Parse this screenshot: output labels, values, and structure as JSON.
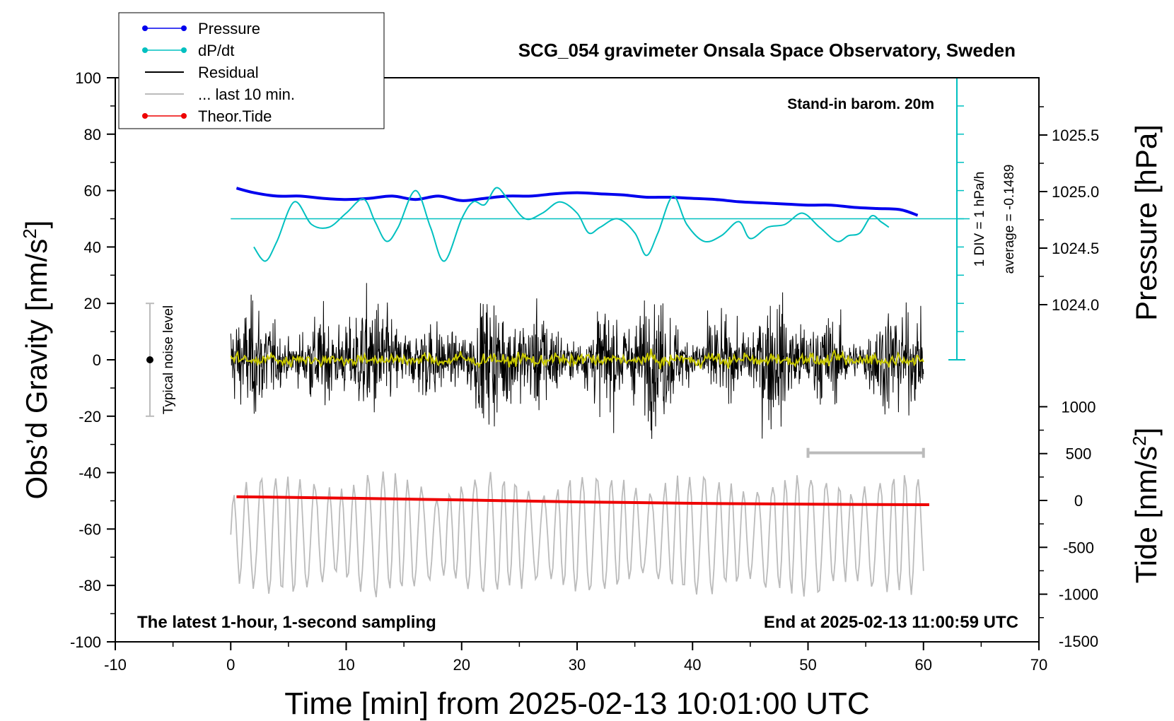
{
  "chart_data": {
    "type": "line",
    "title": "SCG_054 gravimeter Onsala Space Observatory, Sweden",
    "xlabel": "Time [min] from 2025-02-13 10:01:00 UTC",
    "ylabel_left": "Obs’d Gravity [nm/s²]",
    "ylabel_left_main": "Obs’d Gravity [nm/s",
    "ylabel_left_sup": "2",
    "ylabel_left_end": "]",
    "ylabel_right_pressure": "Pressure [hPa]",
    "ylabel_right_tide": "Tide [nm/s²]",
    "ylabel_right_tide_main": "Tide [nm/s",
    "ylabel_right_tide_sup": "2",
    "ylabel_right_tide_end": "]",
    "xlim": [
      -10,
      70
    ],
    "ylim_left": [
      -100,
      100
    ],
    "xticks": [
      "-10",
      "0",
      "10",
      "20",
      "30",
      "40",
      "50",
      "60",
      "70"
    ],
    "yticks_left": [
      "100",
      "80",
      "60",
      "40",
      "20",
      "0",
      "-20",
      "-40",
      "-60",
      "-80",
      "-100"
    ],
    "pressure_ticks": [
      "1025.5",
      "1025.0",
      "1024.5",
      "1024.0"
    ],
    "tide_ticks": [
      "1000",
      "500",
      "0",
      "-500",
      "-1000",
      "-1500"
    ],
    "legend": [
      {
        "label": "Pressure",
        "color": "#0000ee",
        "marker": true
      },
      {
        "label": "dP/dt",
        "color": "#00c0c0",
        "marker": true
      },
      {
        "label": "Residual",
        "color": "#000000",
        "marker": false
      },
      {
        "label": "... last 10 min.",
        "color": "#bbbbbb",
        "marker": false
      },
      {
        "label": "Theor.Tide",
        "color": "#ee0000",
        "marker": true
      }
    ],
    "annotations": {
      "standin": "Stand-in barom. 20m",
      "div": "1 DIV = 1 hPa/h",
      "average": "average = -0.1489",
      "noise": "Typical noise level",
      "bottom_left": "The latest 1-hour, 1-second sampling",
      "bottom_right": "End at 2025-02-13 11:00:59 UTC"
    },
    "series": [
      {
        "name": "Pressure",
        "color": "#0000ee",
        "axis": "pressure_hPa",
        "x": [
          0.5,
          2,
          4,
          6,
          8,
          10,
          12,
          14,
          16,
          18,
          20,
          22,
          24,
          26,
          28,
          30,
          32,
          34,
          36,
          38,
          40,
          42,
          44,
          46,
          48,
          50,
          52,
          54,
          56,
          58,
          59.5
        ],
        "y": [
          1025.03,
          1024.99,
          1024.96,
          1024.96,
          1024.94,
          1024.93,
          1024.94,
          1024.96,
          1024.93,
          1024.96,
          1024.92,
          1024.94,
          1024.96,
          1024.96,
          1024.98,
          1024.99,
          1024.98,
          1024.97,
          1024.95,
          1024.95,
          1024.94,
          1024.93,
          1024.91,
          1024.9,
          1024.89,
          1024.88,
          1024.88,
          1024.86,
          1024.85,
          1024.84,
          1024.79
        ]
      },
      {
        "name": "dP/dt",
        "color": "#00c0c0",
        "axis": "gravity_nms2",
        "x": [
          2,
          3,
          4,
          5.5,
          7,
          8.5,
          10,
          11.5,
          12.5,
          13.5,
          14.5,
          16,
          17.3,
          18.5,
          20,
          21,
          22,
          23,
          24,
          25.5,
          27,
          28.5,
          30,
          31,
          32,
          33.5,
          35,
          36,
          37,
          38.3,
          39.5,
          41,
          42.5,
          44,
          45,
          46.5,
          48,
          49.5,
          51,
          52.5,
          53.5,
          54.5,
          55.5,
          56.3,
          57
        ],
        "y": [
          40,
          35,
          42,
          56,
          48,
          47,
          52,
          57,
          49,
          42,
          47,
          60,
          47,
          35,
          50,
          56,
          55,
          61,
          57,
          50,
          52,
          56,
          52,
          45,
          47,
          50,
          45,
          37,
          45,
          58,
          48,
          42,
          44,
          49,
          43,
          47,
          48,
          52,
          47,
          42,
          44,
          45,
          51,
          49,
          47
        ]
      },
      {
        "name": "Theor.Tide",
        "color": "#ee0000",
        "axis": "tide_nms2",
        "x": [
          0.5,
          10,
          20,
          30,
          40,
          50,
          60.5
        ],
        "y": [
          40,
          25,
          5,
          -15,
          -30,
          -40,
          -45
        ]
      }
    ],
    "dpdt_zero_level": 50,
    "residual_envelope_rms": 7,
    "last10_range_min": [
      50,
      60
    ],
    "noise_bar": {
      "x": -7,
      "ymin": -20,
      "ymax": 20
    }
  }
}
